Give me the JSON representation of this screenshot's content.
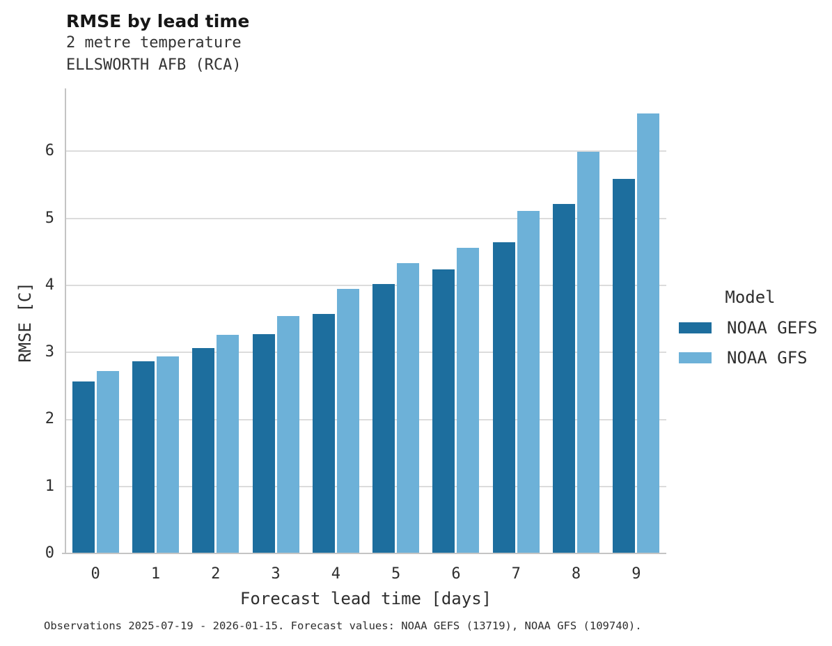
{
  "header": {
    "title": "RMSE by lead time",
    "subtitle_line1": "2 metre temperature",
    "subtitle_line2": "ELLSWORTH AFB (RCA)"
  },
  "chart_data": {
    "type": "bar",
    "title": "RMSE by lead time",
    "subtitle": [
      "2 metre temperature",
      "ELLSWORTH AFB (RCA)"
    ],
    "categories": [
      "0",
      "1",
      "2",
      "3",
      "4",
      "5",
      "6",
      "7",
      "8",
      "9"
    ],
    "series": [
      {
        "name": "NOAA GEFS",
        "color": "#1d6e9e",
        "values": [
          2.57,
          2.87,
          3.06,
          3.27,
          3.57,
          4.02,
          4.24,
          4.64,
          5.22,
          5.59
        ]
      },
      {
        "name": "NOAA GFS",
        "color": "#6db1d8",
        "values": [
          2.72,
          2.94,
          3.26,
          3.54,
          3.95,
          4.33,
          4.56,
          5.11,
          5.99,
          6.57
        ]
      }
    ],
    "xlabel": "Forecast lead time [days]",
    "ylabel": "RMSE [C]",
    "ylim": [
      0,
      6.94
    ],
    "yticks": [
      0,
      1,
      2,
      3,
      4,
      5,
      6
    ],
    "grid": "horizontal-only",
    "legend_title": "Model",
    "legend_position": "right-outside"
  },
  "legend": {
    "title": "Model",
    "items": [
      {
        "label": "NOAA GEFS",
        "color": "#1d6e9e"
      },
      {
        "label": "NOAA GFS",
        "color": "#6db1d8"
      }
    ]
  },
  "footer": {
    "text": "Observations 2025-07-19 - 2026-01-15. Forecast values: NOAA GEFS (13719), NOAA GFS (109740)."
  }
}
